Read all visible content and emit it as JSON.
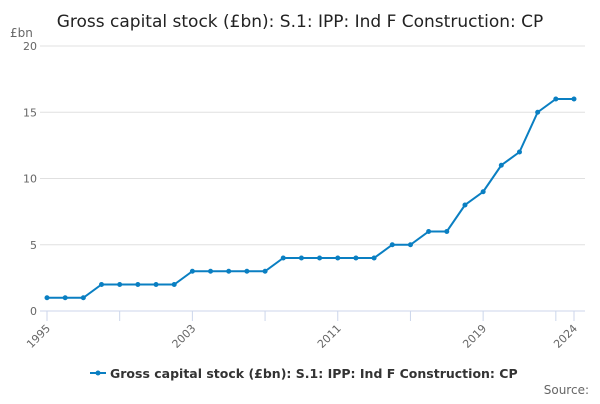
{
  "chart_data": {
    "type": "line",
    "title": "Gross capital stock (£bn): S.1: IPP: Ind F Construction: CP",
    "ylabel": "£bn",
    "xlabel": "",
    "ylim": [
      0,
      20
    ],
    "yticks": [
      "0",
      "5",
      "10",
      "15",
      "20"
    ],
    "xtick_labels": [
      "1995",
      "2003",
      "2011",
      "2019",
      "2024"
    ],
    "x": [
      1995,
      1996,
      1997,
      1998,
      1999,
      2000,
      2001,
      2002,
      2003,
      2004,
      2005,
      2006,
      2007,
      2008,
      2009,
      2010,
      2011,
      2012,
      2013,
      2014,
      2015,
      2016,
      2017,
      2018,
      2019,
      2020,
      2021,
      2022,
      2023,
      2024
    ],
    "series": [
      {
        "name": "Gross capital stock (£bn): S.1: IPP: Ind F Construction: CP",
        "color": "#0a7fc2",
        "values": [
          1,
          1,
          1,
          2,
          2,
          2,
          2,
          2,
          3,
          3,
          3,
          3,
          3,
          4,
          4,
          4,
          4,
          4,
          4,
          5,
          5,
          6,
          6,
          8,
          9,
          11,
          12,
          15,
          16,
          16
        ]
      }
    ],
    "legend": "bottom",
    "source_label": "Source:"
  }
}
